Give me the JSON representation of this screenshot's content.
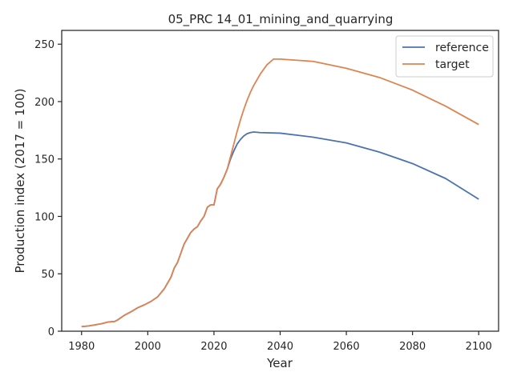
{
  "chart_data": {
    "type": "line",
    "title": "05_PRC 14_01_mining_and_quarrying",
    "xlabel": "Year",
    "ylabel": "Production index (2017 = 100)",
    "xlim": [
      1974,
      2106
    ],
    "ylim": [
      0,
      262
    ],
    "xticks": [
      1980,
      2000,
      2020,
      2040,
      2060,
      2080,
      2100
    ],
    "yticks": [
      0,
      50,
      100,
      150,
      200,
      250
    ],
    "grid": false,
    "legend": "top-right",
    "series": [
      {
        "name": "reference",
        "color": "#4c72b0",
        "points": [
          [
            1980,
            4
          ],
          [
            1982,
            4.5
          ],
          [
            1984,
            5.5
          ],
          [
            1986,
            6.5
          ],
          [
            1988,
            8
          ],
          [
            1990,
            8.5
          ],
          [
            1991,
            10
          ],
          [
            1993,
            14
          ],
          [
            1995,
            17
          ],
          [
            1997,
            20.5
          ],
          [
            1999,
            23
          ],
          [
            2001,
            26
          ],
          [
            2003,
            30
          ],
          [
            2005,
            37
          ],
          [
            2007,
            47
          ],
          [
            2008,
            55
          ],
          [
            2009,
            60
          ],
          [
            2010,
            68
          ],
          [
            2011,
            76
          ],
          [
            2012,
            81
          ],
          [
            2013,
            86
          ],
          [
            2014,
            89
          ],
          [
            2015,
            91
          ],
          [
            2016,
            96
          ],
          [
            2017,
            100
          ],
          [
            2018,
            108
          ],
          [
            2019,
            110
          ],
          [
            2020,
            110
          ],
          [
            2021,
            124
          ],
          [
            2022,
            128
          ],
          [
            2023,
            134
          ],
          [
            2024,
            141
          ],
          [
            2025,
            150
          ],
          [
            2026,
            157
          ],
          [
            2027,
            163
          ],
          [
            2028,
            167
          ],
          [
            2029,
            170
          ],
          [
            2030,
            172
          ],
          [
            2031,
            173
          ],
          [
            2032,
            173.5
          ],
          [
            2034,
            173
          ],
          [
            2040,
            172.5
          ],
          [
            2050,
            169
          ],
          [
            2060,
            164
          ],
          [
            2070,
            156
          ],
          [
            2080,
            146
          ],
          [
            2090,
            133
          ],
          [
            2100,
            115
          ]
        ]
      },
      {
        "name": "target",
        "color": "#dd8452",
        "points": [
          [
            1980,
            4
          ],
          [
            1982,
            4.5
          ],
          [
            1984,
            5.5
          ],
          [
            1986,
            6.5
          ],
          [
            1988,
            8
          ],
          [
            1990,
            8.5
          ],
          [
            1991,
            10
          ],
          [
            1993,
            14
          ],
          [
            1995,
            17
          ],
          [
            1997,
            20.5
          ],
          [
            1999,
            23
          ],
          [
            2001,
            26
          ],
          [
            2003,
            30
          ],
          [
            2005,
            37
          ],
          [
            2007,
            47
          ],
          [
            2008,
            55
          ],
          [
            2009,
            60
          ],
          [
            2010,
            68
          ],
          [
            2011,
            76
          ],
          [
            2012,
            81
          ],
          [
            2013,
            86
          ],
          [
            2014,
            89
          ],
          [
            2015,
            91
          ],
          [
            2016,
            96
          ],
          [
            2017,
            100
          ],
          [
            2018,
            108
          ],
          [
            2019,
            110
          ],
          [
            2020,
            110
          ],
          [
            2021,
            124
          ],
          [
            2022,
            128
          ],
          [
            2023,
            134
          ],
          [
            2024,
            141
          ],
          [
            2025,
            152
          ],
          [
            2026,
            163
          ],
          [
            2027,
            174
          ],
          [
            2028,
            184
          ],
          [
            2029,
            193
          ],
          [
            2030,
            201
          ],
          [
            2031,
            208
          ],
          [
            2032,
            214
          ],
          [
            2034,
            224
          ],
          [
            2036,
            232
          ],
          [
            2038,
            237
          ],
          [
            2040,
            237
          ],
          [
            2050,
            235
          ],
          [
            2060,
            229
          ],
          [
            2070,
            221
          ],
          [
            2080,
            210
          ],
          [
            2090,
            196
          ],
          [
            2100,
            180
          ]
        ]
      }
    ]
  }
}
